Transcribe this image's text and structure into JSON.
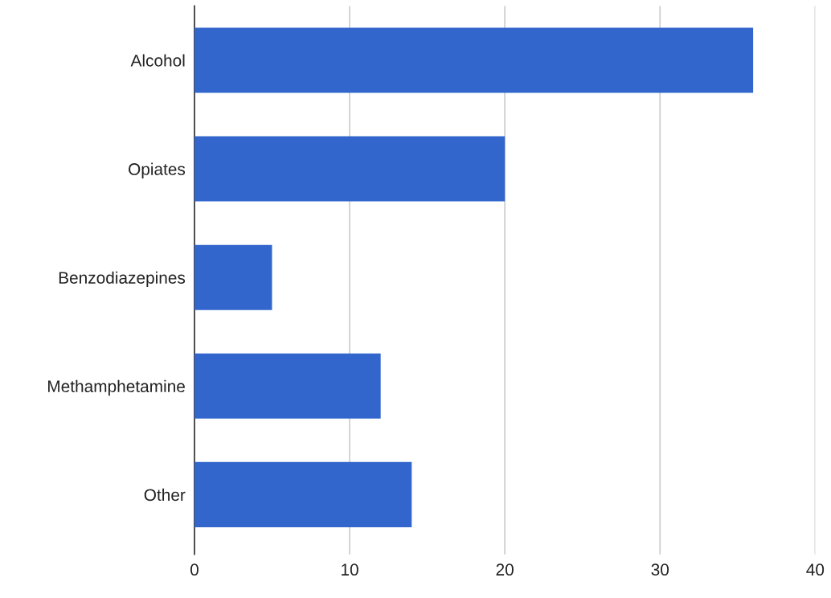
{
  "chart_data": {
    "type": "bar",
    "orientation": "horizontal",
    "categories": [
      "Alcohol",
      "Opiates",
      "Benzodiazepines",
      "Methamphetamine",
      "Other"
    ],
    "values": [
      36,
      20,
      5,
      12,
      14
    ],
    "color": "#3366cc",
    "xlim": [
      0,
      40
    ],
    "xticks": [
      0,
      10,
      20,
      30,
      40
    ],
    "grid": "x"
  }
}
